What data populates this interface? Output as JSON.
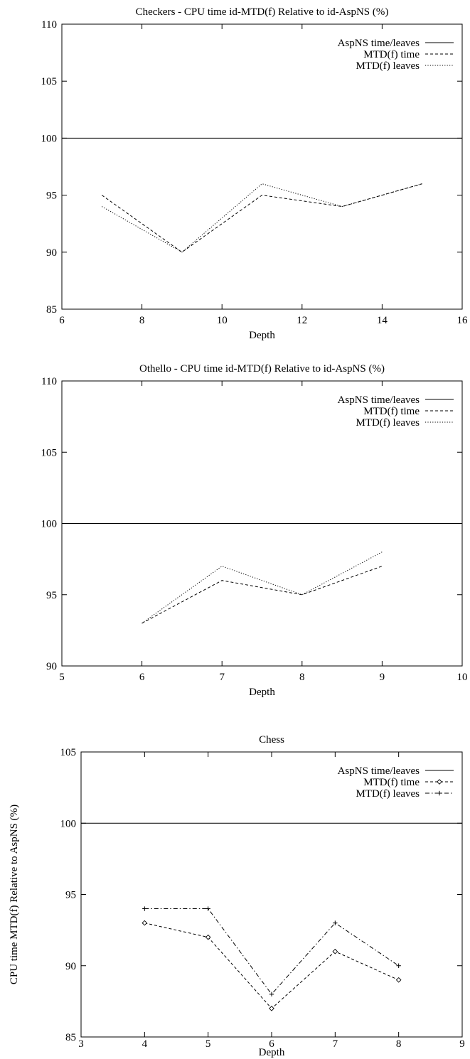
{
  "chart_data": [
    {
      "type": "line",
      "title": "Checkers - CPU time id-MTD(f) Relative to id-AspNS (%)",
      "xlabel": "Depth",
      "ylabel": "",
      "xlim": [
        6,
        16
      ],
      "ylim": [
        85,
        110
      ],
      "xticks": [
        6,
        8,
        10,
        12,
        14,
        16
      ],
      "yticks": [
        85,
        90,
        95,
        100,
        105,
        110
      ],
      "grid": false,
      "legend_position": "top-right",
      "series": [
        {
          "name": "AspNS time/leaves",
          "style": "solid",
          "marker": "none",
          "x": [
            6,
            16
          ],
          "y": [
            100,
            100
          ]
        },
        {
          "name": "MTD(f) time",
          "style": "dashed",
          "marker": "none",
          "x": [
            7,
            9,
            11,
            13,
            15
          ],
          "y": [
            95,
            90,
            95,
            94,
            96
          ]
        },
        {
          "name": "MTD(f) leaves",
          "style": "dotted",
          "marker": "none",
          "x": [
            7,
            9,
            11,
            13,
            15
          ],
          "y": [
            94,
            90,
            96,
            94,
            96
          ]
        }
      ]
    },
    {
      "type": "line",
      "title": "Othello - CPU time id-MTD(f) Relative to id-AspNS (%)",
      "xlabel": "Depth",
      "ylabel": "",
      "xlim": [
        5,
        10
      ],
      "ylim": [
        90,
        110
      ],
      "xticks": [
        5,
        6,
        7,
        8,
        9,
        10
      ],
      "yticks": [
        90,
        95,
        100,
        105,
        110
      ],
      "grid": false,
      "legend_position": "top-right",
      "series": [
        {
          "name": "AspNS time/leaves",
          "style": "solid",
          "marker": "none",
          "x": [
            5,
            10
          ],
          "y": [
            100,
            100
          ]
        },
        {
          "name": "MTD(f) time",
          "style": "dashed",
          "marker": "none",
          "x": [
            6,
            7,
            8,
            9
          ],
          "y": [
            93,
            96,
            95,
            97
          ]
        },
        {
          "name": "MTD(f) leaves",
          "style": "dotted",
          "marker": "none",
          "x": [
            6,
            7,
            8,
            9
          ],
          "y": [
            93,
            97,
            95,
            98
          ]
        }
      ]
    },
    {
      "type": "line",
      "title": "Chess",
      "xlabel": "Depth",
      "ylabel": "CPU time MTD(f) Relative to AspNS (%)",
      "xlim": [
        3,
        9
      ],
      "ylim": [
        85,
        105
      ],
      "xticks": [
        3,
        4,
        5,
        6,
        7,
        8,
        9
      ],
      "yticks": [
        85,
        90,
        95,
        100,
        105
      ],
      "grid": false,
      "legend_position": "top-right",
      "series": [
        {
          "name": "AspNS time/leaves",
          "style": "solid",
          "marker": "none",
          "x": [
            3,
            9
          ],
          "y": [
            100,
            100
          ]
        },
        {
          "name": "MTD(f) time",
          "style": "dashed",
          "marker": "diamond",
          "x": [
            4,
            5,
            6,
            7,
            8
          ],
          "y": [
            93,
            92,
            87,
            91,
            89
          ]
        },
        {
          "name": "MTD(f) leaves",
          "style": "dashdot",
          "marker": "plus",
          "x": [
            4,
            5,
            6,
            7,
            8
          ],
          "y": [
            94,
            94,
            88,
            93,
            90
          ]
        }
      ]
    }
  ]
}
